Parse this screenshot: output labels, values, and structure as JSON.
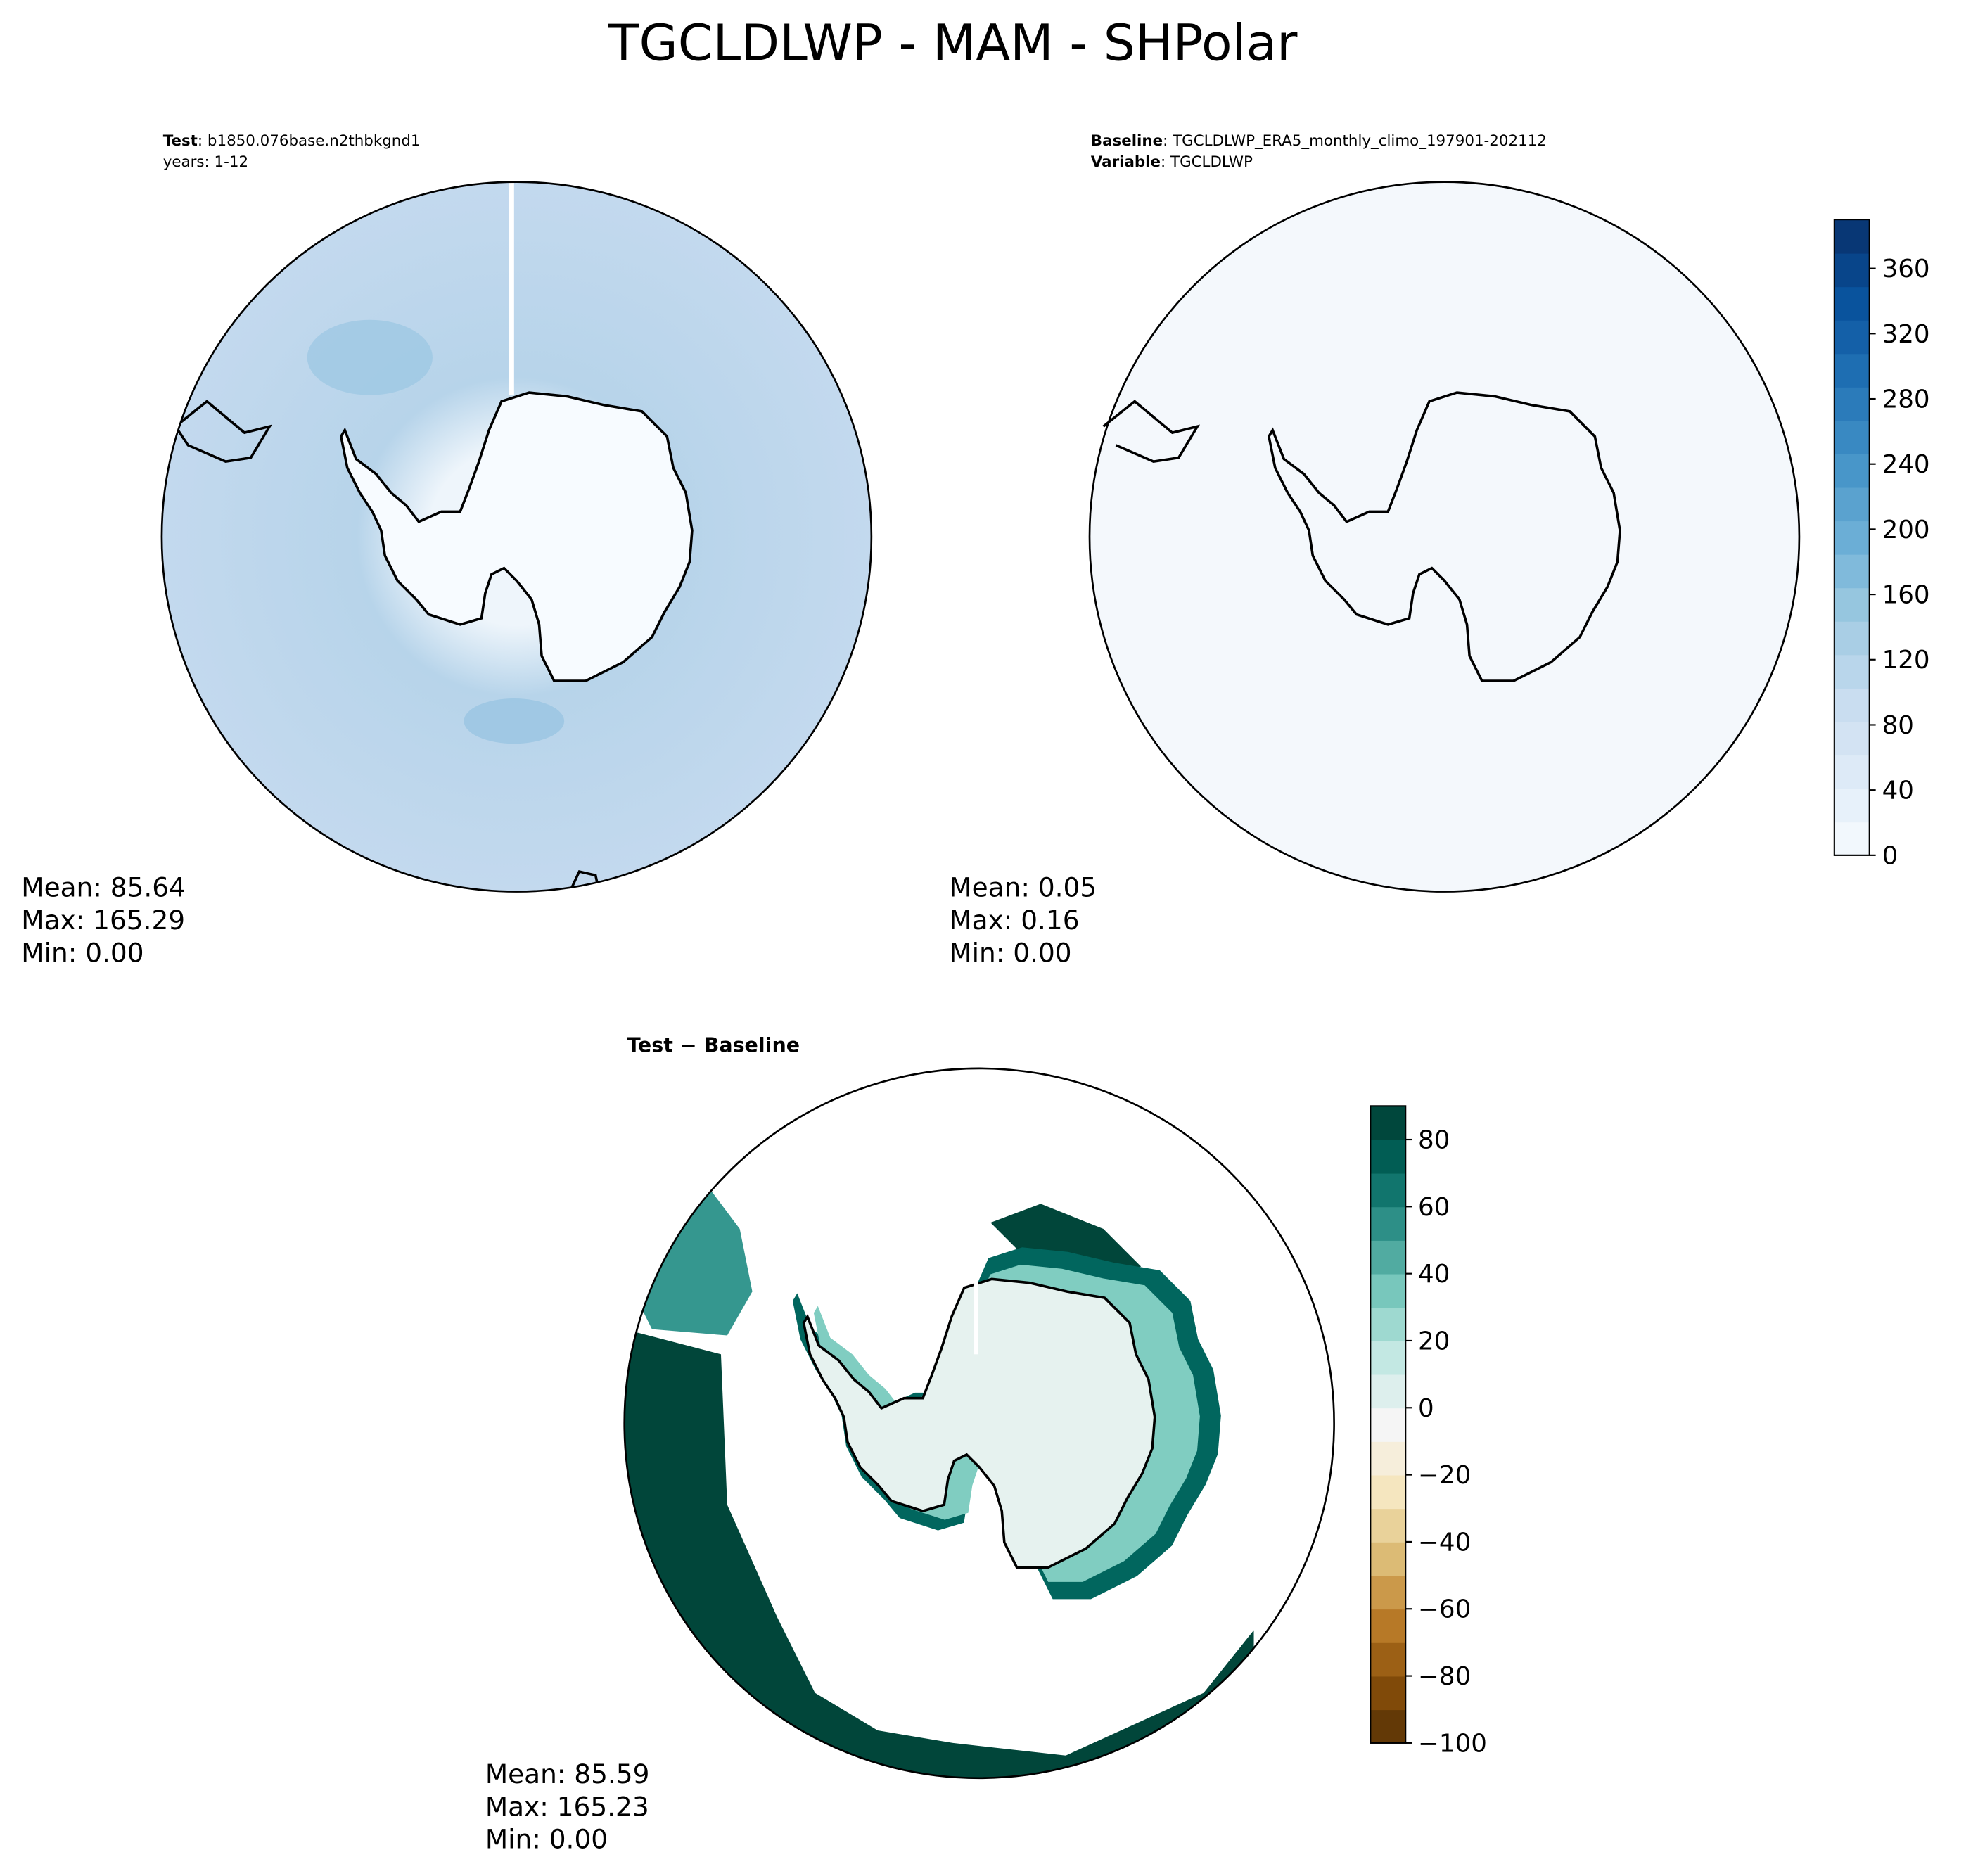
{
  "title": "TGCLDLWP - MAM - SHPolar",
  "panels": [
    {
      "lines": [
        {
          "bold": "Test",
          "text": ": b1850.076base.n2thbkgnd1"
        },
        {
          "text": "years: 1-12"
        }
      ],
      "stats": [
        "Mean: 85.64",
        "Max: 165.29",
        "Min:  0.00"
      ]
    },
    {
      "lines": [
        {
          "bold": "Baseline",
          "text": ": TGCLDLWP_ERA5_monthly_climo_197901-202112"
        },
        {
          "bold": "Variable",
          "text": ": TGCLDLWP"
        }
      ],
      "stats": [
        "Mean:  0.05",
        "Max:  0.16",
        "Min:  0.00"
      ]
    },
    {
      "title": "Test − Baseline",
      "stats": [
        "Mean: 85.59",
        "Max: 165.23",
        "Min:  0.00"
      ]
    }
  ],
  "colorbars": [
    {
      "lim": [
        0,
        390
      ],
      "ticks": [
        0,
        40,
        80,
        120,
        160,
        200,
        240,
        280,
        320,
        360
      ]
    },
    {
      "lim": [
        -100,
        90
      ],
      "ticks": [
        {
          "value": -100,
          "label": "−100"
        },
        {
          "value": -80,
          "label": "−80"
        },
        {
          "value": -60,
          "label": "−60"
        },
        {
          "value": -40,
          "label": "−40"
        },
        {
          "value": -20,
          "label": "−20"
        },
        0,
        20,
        40,
        60,
        80
      ]
    }
  ]
}
